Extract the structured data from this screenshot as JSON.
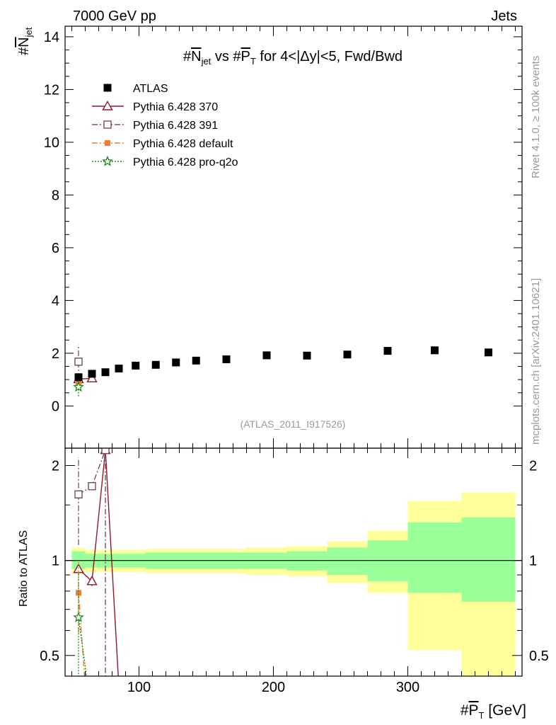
{
  "header": {
    "energy_label": "7000 GeV pp",
    "category_label": "Jets",
    "side_label_upper": "Rivet 4.1.0, ≥ 100k events",
    "side_label_lower": "mcplots.cern.ch [arXiv:2401.10621]",
    "analysis_id": "(ATLAS_2011_I917526)"
  },
  "chart_data": [
    {
      "type": "scatter",
      "panel": "main",
      "title": "#N_jet vs #P_T for 4<|Δy|<5, Fwd/Bwd",
      "title_parts": {
        "a": "#",
        "b": "N",
        "c": "jet",
        "d": " vs #",
        "e": "P",
        "f": "T",
        "g": " for 4<|Δy|<5, Fwd/Bwd"
      },
      "ylabel": "#N_jet",
      "ylabel_parts": {
        "a": "#",
        "b": "N",
        "c": "jet"
      },
      "xlim": [
        45,
        385
      ],
      "ylim": [
        -1.6,
        14.4
      ],
      "yticks": [
        0,
        2,
        4,
        6,
        8,
        10,
        12,
        14
      ],
      "yticks_labels": [
        "0",
        "2",
        "4",
        "6",
        "8",
        "10",
        "12",
        "14"
      ],
      "legend": [
        {
          "label": "ATLAS",
          "color": "#000000",
          "marker": "square-filled",
          "line": "none"
        },
        {
          "label": "Pythia 6.428 370",
          "color": "#8b1a2b",
          "marker": "triangle-open",
          "line": "solid"
        },
        {
          "label": "Pythia 6.428 391",
          "color": "#7a4a5a",
          "marker": "square-open",
          "line": "dashdot"
        },
        {
          "label": "Pythia 6.428 default",
          "color": "#f08030",
          "marker": "square-filled-small",
          "line": "dashdot"
        },
        {
          "label": "Pythia 6.428 pro-q2o",
          "color": "#1a8a1a",
          "marker": "star-open",
          "line": "dotted"
        }
      ],
      "atlas": {
        "x": [
          55,
          65,
          75,
          85,
          97.5,
          112.5,
          127.5,
          142.5,
          165,
          195,
          225,
          255,
          285,
          320,
          360
        ],
        "y": [
          1.09,
          1.22,
          1.28,
          1.42,
          1.53,
          1.56,
          1.65,
          1.72,
          1.77,
          1.92,
          1.91,
          1.95,
          2.09,
          2.11,
          2.03
        ]
      },
      "series": [
        {
          "name": "Pythia 6.428 370",
          "x": [
            55,
            65
          ],
          "y": [
            1.02,
            1.05
          ],
          "yerr": [
            0.12,
            0.1
          ]
        },
        {
          "name": "Pythia 6.428 391",
          "x": [
            55
          ],
          "y": [
            1.68
          ],
          "yerr": [
            0.65
          ]
        },
        {
          "name": "Pythia 6.428 default",
          "x": [
            55
          ],
          "y": [
            0.86
          ],
          "yerr": [
            0.25
          ]
        },
        {
          "name": "Pythia 6.428 pro-q2o",
          "x": [
            55
          ],
          "y": [
            0.72
          ],
          "yerr": [
            0.35
          ]
        }
      ]
    },
    {
      "type": "line",
      "panel": "ratio",
      "ylabel": "Ratio to ATLAS",
      "xlabel": "#P_T [GeV]",
      "xlabel_parts": {
        "a": "#",
        "b": "P",
        "c": "T",
        "d": " [GeV]"
      },
      "xlim": [
        45,
        385
      ],
      "ylim": [
        0.43,
        2.27
      ],
      "xticks": [
        100,
        200,
        300
      ],
      "xticks_labels": [
        "100",
        "200",
        "300"
      ],
      "yticks": [
        0.5,
        1,
        2
      ],
      "yticks_labels": [
        "0.5",
        "1",
        "2"
      ],
      "bands": {
        "edges": [
          50,
          60,
          70,
          80,
          90,
          105,
          120,
          135,
          150,
          180,
          210,
          240,
          270,
          300,
          340,
          380
        ],
        "stat_lo": [
          0.94,
          0.95,
          0.95,
          0.95,
          0.95,
          0.94,
          0.94,
          0.94,
          0.94,
          0.94,
          0.93,
          0.9,
          0.86,
          0.79,
          0.74
        ],
        "stat_hi": [
          1.07,
          1.05,
          1.05,
          1.05,
          1.05,
          1.06,
          1.06,
          1.06,
          1.06,
          1.06,
          1.07,
          1.1,
          1.16,
          1.32,
          1.37
        ],
        "tot_lo": [
          0.91,
          0.92,
          0.92,
          0.92,
          0.92,
          0.91,
          0.91,
          0.91,
          0.91,
          0.9,
          0.89,
          0.85,
          0.79,
          0.52,
          0.4
        ],
        "tot_hi": [
          1.1,
          1.08,
          1.08,
          1.08,
          1.08,
          1.09,
          1.09,
          1.09,
          1.09,
          1.1,
          1.11,
          1.15,
          1.24,
          1.54,
          1.64
        ],
        "stat_color": "#99ff99",
        "total_color": "#ffff99"
      },
      "series": [
        {
          "name": "Pythia 6.428 370",
          "points": [
            [
              55,
              0.94
            ],
            [
              65,
              0.86
            ],
            [
              75,
              2.24
            ],
            [
              85,
              0.4
            ]
          ],
          "yerr": [
            0.03,
            0.03,
            0.02,
            0
          ]
        },
        {
          "name": "Pythia 6.428 391",
          "points": [
            [
              55,
              1.62
            ],
            [
              65,
              1.72
            ],
            [
              75,
              2.24
            ],
            [
              75,
              0.4
            ]
          ],
          "yerr": [
            0.5,
            0,
            0,
            0
          ]
        },
        {
          "name": "Pythia 6.428 default",
          "points": [
            [
              55,
              0.79
            ],
            [
              60,
              0.4
            ]
          ],
          "yerr": [
            0.2,
            0
          ]
        },
        {
          "name": "Pythia 6.428 pro-q2o",
          "points": [
            [
              55,
              0.66
            ],
            [
              62,
              0.4
            ]
          ],
          "yerr": [
            0.25,
            0
          ]
        }
      ]
    }
  ]
}
